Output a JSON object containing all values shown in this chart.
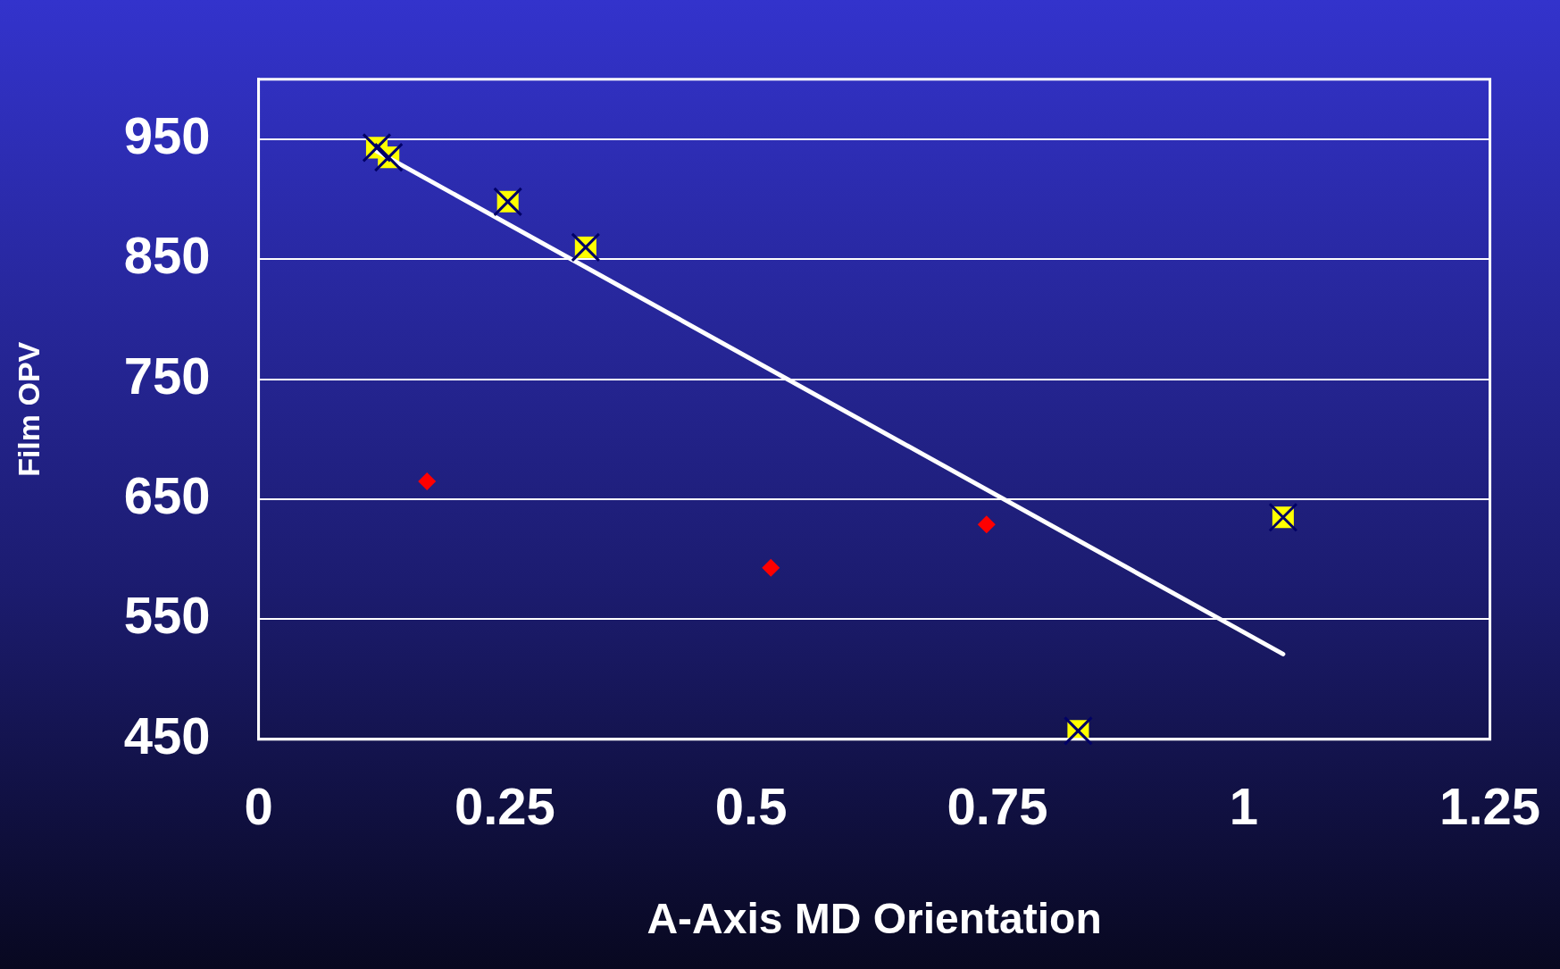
{
  "chart_data": {
    "type": "scatter",
    "xlabel": "A-Axis MD Orientation",
    "ylabel": "Film OPV",
    "xlim": [
      0,
      1.25
    ],
    "xticks": [
      0,
      0.25,
      0.5,
      0.75,
      1,
      1.25
    ],
    "ylim": [
      450,
      1000
    ],
    "yticks": [
      450,
      550,
      650,
      750,
      850,
      950
    ],
    "grid": "y",
    "legend": false,
    "series": [
      {
        "marker": "square",
        "color": "#ffff00",
        "x": [
          0.12,
          0.132,
          0.253,
          0.332,
          1.04,
          0.832
        ],
        "values": [
          943,
          935,
          898,
          860,
          635,
          457
        ]
      },
      {
        "marker": "diamond",
        "color": "#ff0000",
        "x": [
          0.171,
          0.52,
          0.739
        ],
        "values": [
          665,
          593,
          629
        ]
      },
      {
        "type": "line",
        "marker": "none",
        "line_style": "solid",
        "color": "#ffffff",
        "x": [
          0.12,
          1.04
        ],
        "values": [
          940,
          521
        ]
      }
    ]
  }
}
